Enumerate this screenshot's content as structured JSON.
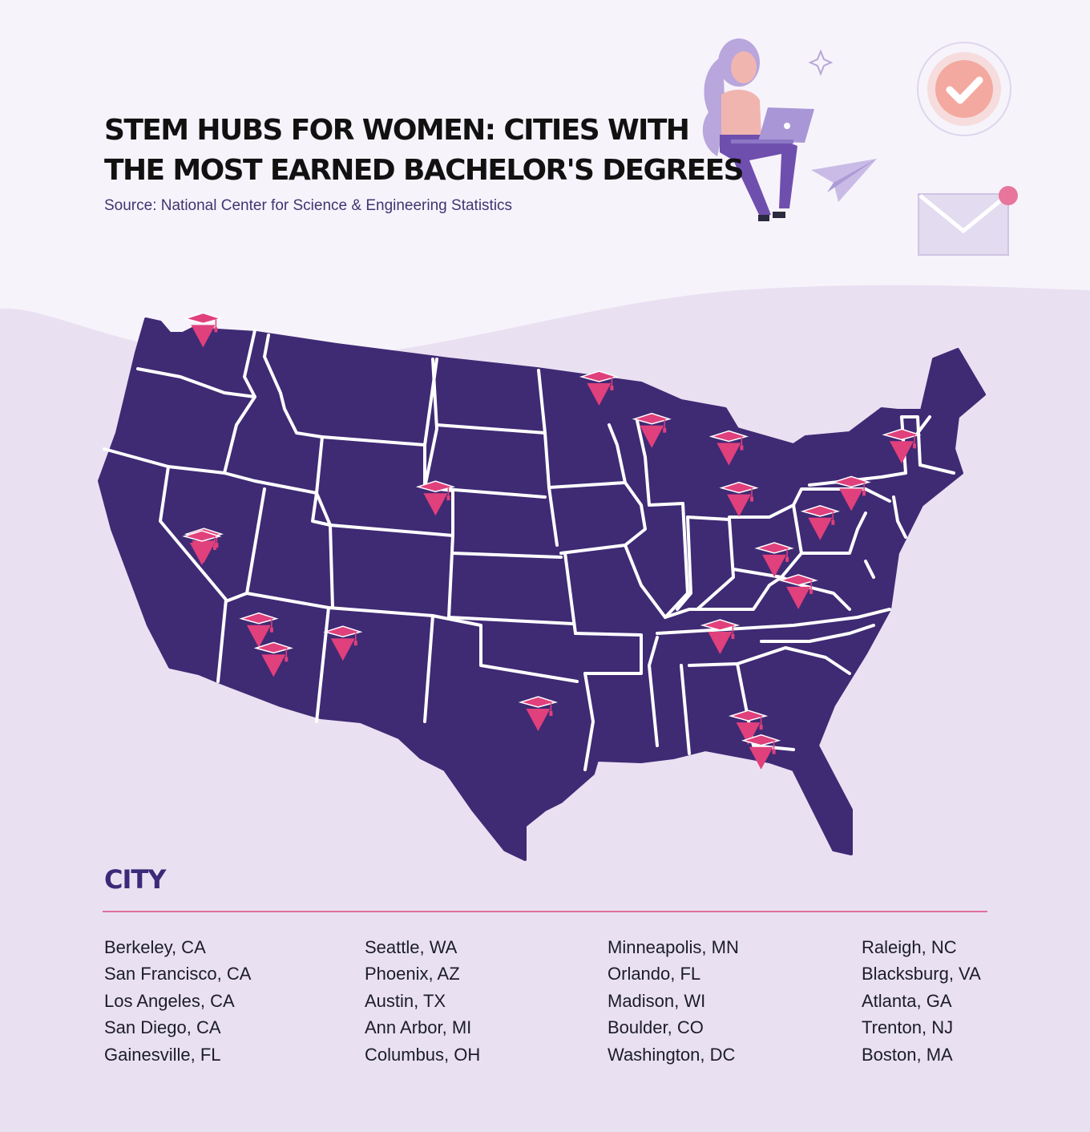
{
  "title": "STEM HUBS FOR WOMEN: CITIES WITH\nTHE MOST EARNED BACHELOR'S DEGREES",
  "source": "Source: National Center for Science & Engineering Statistics",
  "legend": {
    "heading": "CITY",
    "columns": [
      [
        "Berkeley, CA",
        "San Francisco, CA",
        "Los Angeles, CA",
        "San Diego, CA",
        "Gainesville, FL"
      ],
      [
        "Seattle, WA",
        "Phoenix, AZ",
        "Austin, TX",
        "Ann Arbor, MI",
        "Columbus, OH"
      ],
      [
        "Minneapolis, MN",
        "Orlando, FL",
        "Madison, WI",
        "Boulder, CO",
        "Washington, DC"
      ],
      [
        "Raleigh, NC",
        "Blacksburg, VA",
        "Atlanta, GA",
        "Trenton, NJ",
        "Boston, MA"
      ]
    ]
  },
  "markers": [
    {
      "city": "Seattle, WA",
      "lat": 47.61,
      "lon": -122.33
    },
    {
      "city": "Berkeley, CA",
      "lat": 37.87,
      "lon": -122.27
    },
    {
      "city": "San Francisco, CA",
      "lat": 37.77,
      "lon": -122.42
    },
    {
      "city": "Los Angeles, CA",
      "lat": 34.05,
      "lon": -118.24
    },
    {
      "city": "San Diego, CA",
      "lat": 32.72,
      "lon": -117.16
    },
    {
      "city": "Phoenix, AZ",
      "lat": 33.45,
      "lon": -112.07
    },
    {
      "city": "Boulder, CO",
      "lat": 40.01,
      "lon": -105.27
    },
    {
      "city": "Austin, TX",
      "lat": 30.27,
      "lon": -97.74
    },
    {
      "city": "Minneapolis, MN",
      "lat": 44.98,
      "lon": -93.27
    },
    {
      "city": "Madison, WI",
      "lat": 43.07,
      "lon": -89.4
    },
    {
      "city": "Ann Arbor, MI",
      "lat": 42.28,
      "lon": -83.74
    },
    {
      "city": "Columbus, OH",
      "lat": 39.96,
      "lon": -83.0
    },
    {
      "city": "Atlanta, GA",
      "lat": 33.75,
      "lon": -84.39
    },
    {
      "city": "Gainesville, FL",
      "lat": 29.65,
      "lon": -82.32
    },
    {
      "city": "Orlando, FL",
      "lat": 28.54,
      "lon": -81.38
    },
    {
      "city": "Blacksburg, VA",
      "lat": 37.23,
      "lon": -80.41
    },
    {
      "city": "Raleigh, NC",
      "lat": 35.78,
      "lon": -78.64
    },
    {
      "city": "Washington, DC",
      "lat": 38.9,
      "lon": -77.04
    },
    {
      "city": "Trenton, NJ",
      "lat": 40.22,
      "lon": -74.76
    },
    {
      "city": "Boston, MA",
      "lat": 42.36,
      "lon": -71.06
    }
  ],
  "colors": {
    "background_top": "#f7f3fb",
    "background_bottom": "#e9e1f2",
    "map_fill": "#3f2a74",
    "state_border": "#ffffff",
    "marker": "#e0407c",
    "divider": "#e0709e",
    "heading": "#3a2a78"
  },
  "icons": [
    "woman-with-laptop-illustration",
    "sparkle-icon",
    "checkmark-badge-icon",
    "paper-plane-icon",
    "envelope-icon",
    "graduation-cap-marker-icon"
  ]
}
